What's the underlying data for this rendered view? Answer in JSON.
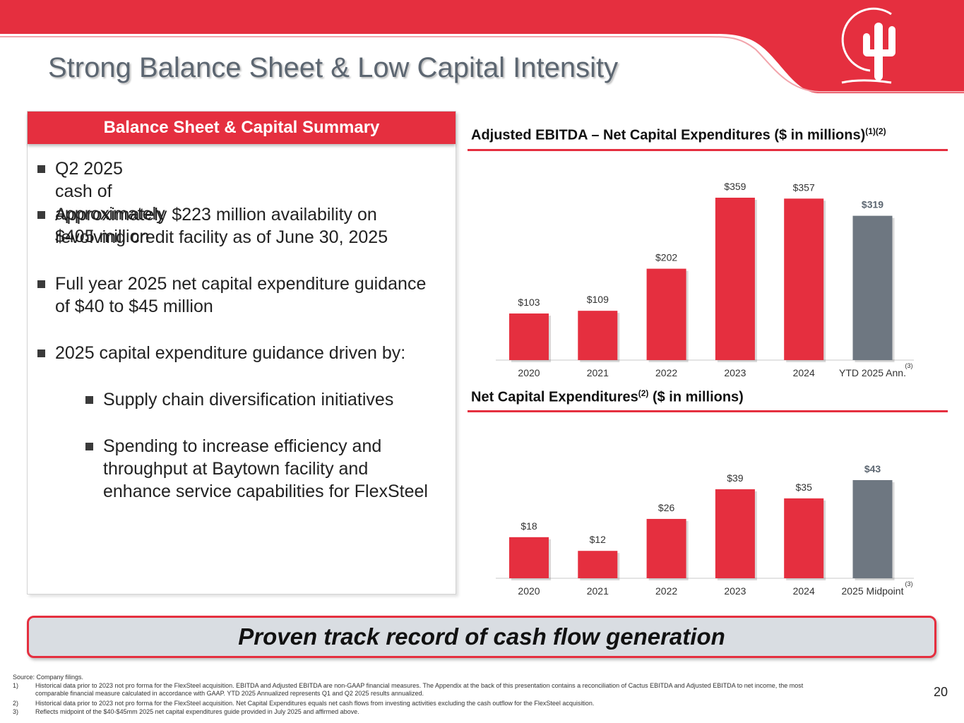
{
  "title": "Strong Balance Sheet & Low Capital Intensity",
  "panel": {
    "header": "Balance Sheet & Capital Summary",
    "bullets": [
      {
        "line1": "Q2 2025 cash of approximately $405 million",
        "line2": ""
      },
      {
        "line1": "Approximately $223 million availability on",
        "line2": "revolving credit facility as of June 30, 2025"
      },
      {
        "line1": "Full year 2025 net capital expenditure guidance",
        "line2": "of $40 to $45 million"
      },
      {
        "line1": "2025 capital expenditure guidance driven by:",
        "line2": ""
      }
    ],
    "sub_bullets": [
      {
        "line1": "Supply chain diversification initiatives",
        "line2": "",
        "line3": ""
      },
      {
        "line1": "Spending to increase efficiency and",
        "line2": "throughput at Baytown facility and",
        "line3": "enhance service capabilities for FlexSteel"
      }
    ]
  },
  "chart_titles": {
    "ebitda_main": "Adjusted EBITDA – Net Capital Expenditures ($ in millions)",
    "ebitda_sup": "(1)(2)",
    "capex_main_a": "Net Capital Expenditures",
    "capex_sup": "(2)",
    "capex_main_b": " ($ in millions)"
  },
  "chart_data": [
    {
      "type": "bar",
      "categories": [
        "2020",
        "2021",
        "2022",
        "2023",
        "2024",
        "YTD 2025 Ann."
      ],
      "values": [
        103,
        109,
        202,
        359,
        357,
        319
      ],
      "labels": [
        "$103",
        "$109",
        "$202",
        "$359",
        "$357",
        "$319"
      ],
      "last_note": "(3)",
      "title": "Adjusted EBITDA – Net Capital Expenditures ($ in millions)",
      "ylim": [
        0,
        359
      ],
      "grid": false,
      "colors": {
        "bar": "#e52f3f",
        "last_bar": "#6e7781"
      }
    },
    {
      "type": "bar",
      "categories": [
        "2020",
        "2021",
        "2022",
        "2023",
        "2024",
        "2025 Midpoint"
      ],
      "values": [
        18,
        12,
        26,
        39,
        35,
        43
      ],
      "labels": [
        "$18",
        "$12",
        "$26",
        "$39",
        "$35",
        "$43"
      ],
      "last_note": "(3)",
      "title": "Net Capital Expenditures ($ in millions)",
      "ylim": [
        0,
        43
      ],
      "grid": false,
      "colors": {
        "bar": "#e52f3f",
        "last_bar": "#6e7781"
      }
    }
  ],
  "banner": "Proven track record of cash flow generation",
  "footnotes": {
    "source": "Source: Company filings.",
    "items": [
      {
        "num": "1)",
        "line1": "Historical data prior to 2023 not pro forma for the FlexSteel acquisition. EBITDA and Adjusted EBITDA are non-GAAP financial measures. The Appendix at the back of this presentation contains a reconciliation of Cactus EBITDA and Adjusted EBITDA to net income, the most",
        "line2": "comparable financial measure calculated in accordance with GAAP. YTD 2025 Annualized represents Q1 and Q2 2025 results annualized."
      },
      {
        "num": "2)",
        "line1": "Historical data prior to 2023 not pro forma for the FlexSteel acquisition.  Net Capital Expenditures equals net cash flows from investing activities excluding the cash outflow for the FlexSteel acquisition.",
        "line2": ""
      },
      {
        "num": "3)",
        "line1": "Reflects midpoint of the $40-$45mm 2025 net capital expenditures guide provided in July 2025 and affirmed above.",
        "line2": ""
      }
    ]
  },
  "page_number": "20",
  "colors": {
    "brand_red": "#e52f3f",
    "gray_bar": "#6e7781",
    "title_gray": "#5c6671"
  }
}
